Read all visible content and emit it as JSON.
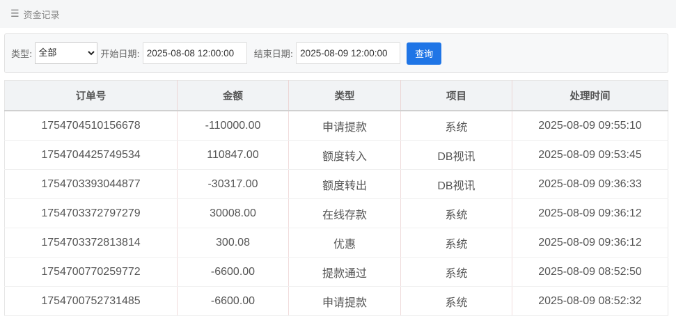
{
  "header": {
    "title": "资金记录",
    "icon": "menu-icon"
  },
  "filter": {
    "type_label": "类型:",
    "type_value": "全部",
    "start_label": "开始日期:",
    "start_value": "2025-08-08 12:00:00",
    "end_label": "结束日期:",
    "end_value": "2025-08-09 12:00:00",
    "query_label": "查询",
    "accent": "#1f75e6"
  },
  "table": {
    "columns": [
      "订单号",
      "金额",
      "类型",
      "项目",
      "处理时间"
    ],
    "rows": [
      [
        "1754704510156678",
        "-110000.00",
        "申请提款",
        "系统",
        "2025-08-09 09:55:10"
      ],
      [
        "1754704425749534",
        "110847.00",
        "额度转入",
        "DB视讯",
        "2025-08-09 09:53:45"
      ],
      [
        "1754703393044877",
        "-30317.00",
        "额度转出",
        "DB视讯",
        "2025-08-09 09:36:33"
      ],
      [
        "1754703372797279",
        "30008.00",
        "在线存款",
        "系统",
        "2025-08-09 09:36:12"
      ],
      [
        "1754703372813814",
        "300.08",
        "优惠",
        "系统",
        "2025-08-09 09:36:12"
      ],
      [
        "1754700770259772",
        "-6600.00",
        "提款通过",
        "系统",
        "2025-08-09 08:52:50"
      ],
      [
        "1754700752731485",
        "-6600.00",
        "申请提款",
        "系统",
        "2025-08-09 08:52:32"
      ]
    ]
  }
}
